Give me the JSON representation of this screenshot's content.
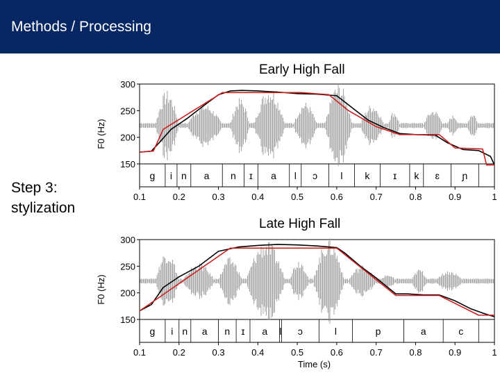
{
  "header": {
    "title": "Methods / Processing"
  },
  "side": {
    "line1": "Step 3:",
    "line2": "stylization"
  },
  "colors": {
    "header_bg": "#062763",
    "waveform": "#8c8c8c",
    "f0_measured": "#000000",
    "f0_stylized": "#cc1f1f"
  },
  "chart_data": [
    {
      "type": "line",
      "title": "Early High Fall",
      "ylabel": "F0 (Hz)",
      "xlabel": "",
      "ylim": [
        150,
        300
      ],
      "xlim": [
        0.1,
        1
      ],
      "yticks": [
        "300",
        "250",
        "200",
        "150"
      ],
      "xticks": [
        "0.1",
        "0.2",
        "0.3",
        "0.4",
        "0.5",
        "0.6",
        "0.7",
        "0.8",
        "0.9",
        "1"
      ],
      "segments": [
        "g",
        "i",
        "n",
        "a",
        "n",
        "ɪ",
        "a",
        "l",
        "ɔ",
        "l",
        "k",
        "ɪ",
        "k",
        "ɛ",
        "ɲ"
      ],
      "series": [
        {
          "x": [
            0.1,
            0.13,
            0.15,
            0.18,
            0.22,
            0.26,
            0.3,
            0.33,
            0.36,
            0.4,
            0.45,
            0.5,
            0.55,
            0.6,
            0.64,
            0.68,
            0.72,
            0.76,
            0.8,
            0.85,
            0.88,
            0.92,
            0.96,
            0.99,
            1.0
          ],
          "y": [
            172,
            174,
            190,
            215,
            235,
            258,
            280,
            287,
            288,
            287,
            285,
            282,
            281,
            278,
            255,
            232,
            218,
            207,
            205,
            204,
            190,
            177,
            175,
            164,
            148
          ]
        },
        {
          "x": [
            0.1,
            0.135,
            0.16,
            0.31,
            0.51,
            0.58,
            0.63,
            0.7,
            0.76,
            0.86,
            0.9,
            0.97,
            0.98,
            1.0
          ],
          "y": [
            172,
            174,
            215,
            284,
            284,
            280,
            250,
            220,
            205,
            205,
            180,
            178,
            148,
            148
          ]
        }
      ]
    },
    {
      "type": "line",
      "title": "Late High Fall",
      "ylabel": "F0 (Hz)",
      "xlabel": "Time (s)",
      "ylim": [
        150,
        300
      ],
      "xlim": [
        0.1,
        1
      ],
      "yticks": [
        "300",
        "250",
        "200",
        "150"
      ],
      "xticks": [
        "0.1",
        "0.2",
        "0.3",
        "0.4",
        "0.5",
        "0.6",
        "0.7",
        "0.8",
        "0.9",
        "1"
      ],
      "segments": [
        "g",
        "i",
        "n",
        "a",
        "n",
        "ɪ",
        "a",
        "l",
        "ɔ",
        "l",
        "p",
        "a",
        "c"
      ],
      "series": [
        {
          "x": [
            0.1,
            0.13,
            0.16,
            0.2,
            0.25,
            0.3,
            0.35,
            0.4,
            0.45,
            0.5,
            0.55,
            0.6,
            0.62,
            0.66,
            0.7,
            0.75,
            0.78,
            0.82,
            0.86,
            0.9,
            0.94,
            0.97,
            1.0
          ],
          "y": [
            166,
            178,
            210,
            230,
            250,
            278,
            286,
            289,
            291,
            290,
            288,
            285,
            275,
            250,
            228,
            198,
            198,
            196,
            196,
            185,
            170,
            162,
            155
          ]
        },
        {
          "x": [
            0.1,
            0.33,
            0.6,
            0.75,
            0.8,
            0.86,
            0.96,
            1.0
          ],
          "y": [
            166,
            284,
            284,
            195,
            195,
            195,
            158,
            158
          ]
        }
      ]
    }
  ]
}
